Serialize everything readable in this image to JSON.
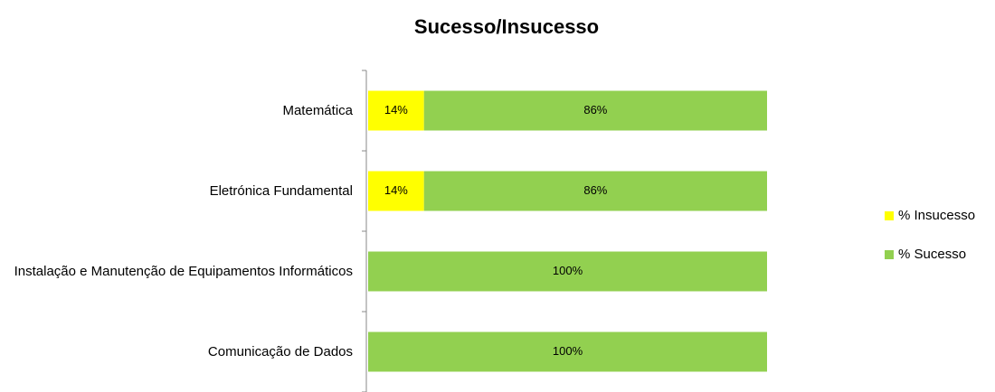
{
  "chart_data": {
    "type": "stacked-barh",
    "title": "Sucesso/Insucesso",
    "categories": [
      "Matemática",
      "Eletrónica Fundamental",
      "Instalação e Manutenção de Equipamentos Informáticos",
      "Comunicação de Dados"
    ],
    "series": [
      {
        "name": "% Insucesso",
        "color": "#ffff00",
        "values": [
          14,
          14,
          0,
          0
        ],
        "value_labels": [
          "14%",
          "14%",
          null,
          null
        ]
      },
      {
        "name": "% Sucesso",
        "color": "#92d050",
        "values": [
          86,
          86,
          100,
          100
        ],
        "value_labels": [
          "86%",
          "86%",
          "100%",
          "100%"
        ]
      }
    ],
    "xlim": [
      0,
      100
    ],
    "legend": "right"
  }
}
